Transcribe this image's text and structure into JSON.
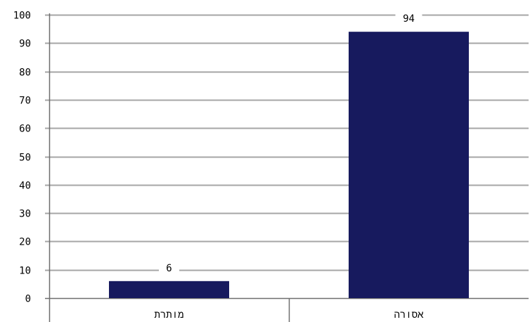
{
  "chart_data": {
    "type": "bar",
    "categories": [
      "מותרת",
      "אסורה"
    ],
    "values": [
      6,
      94
    ],
    "data_labels": [
      "6",
      "94"
    ],
    "ylim": [
      0,
      100
    ],
    "yticks": [
      0,
      10,
      20,
      30,
      40,
      50,
      60,
      70,
      80,
      90,
      100
    ],
    "ytick_labels": [
      "0",
      "10",
      "20",
      "30",
      "40",
      "50",
      "60",
      "70",
      "80",
      "90",
      "100"
    ],
    "title": "",
    "xlabel": "",
    "ylabel": "",
    "grid": true,
    "legend": "none",
    "bar_color": "#171a5e",
    "grid_color": "#a6a6a6"
  }
}
